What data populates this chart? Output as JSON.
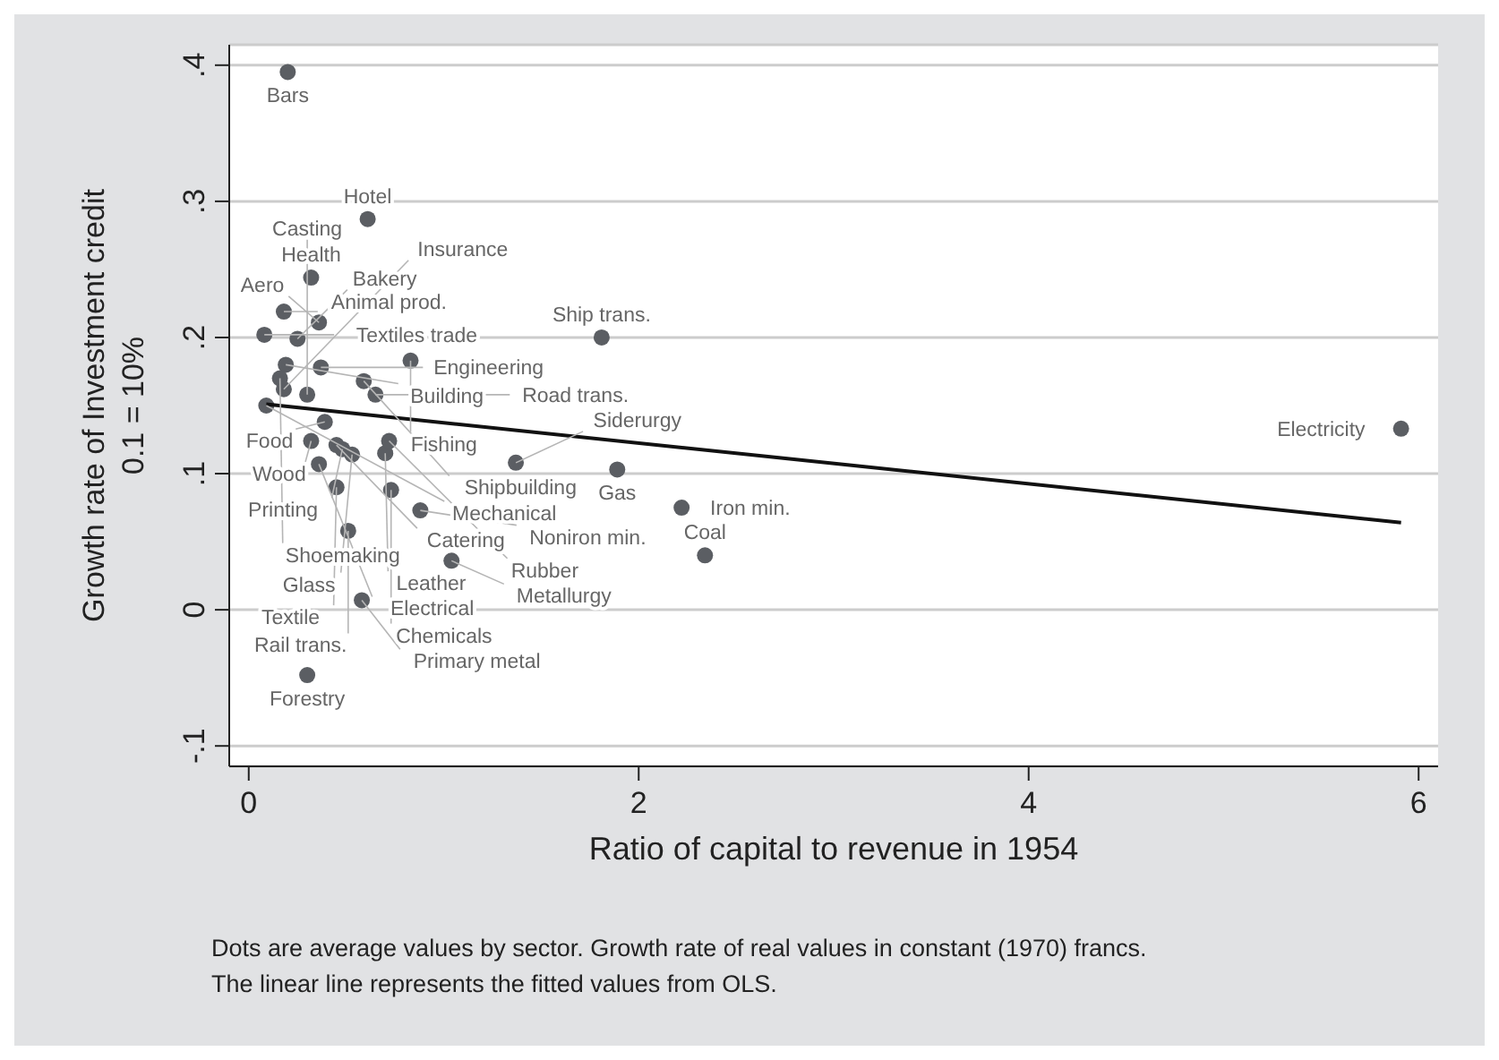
{
  "chart_data": {
    "type": "scatter",
    "xlabel": "Ratio of capital to revenue in 1954",
    "ylabel": "Growth rate of Investment credit\n0.1 = 10%",
    "xlim": [
      -0.1,
      6.1
    ],
    "xticks": [
      0,
      2,
      4,
      6
    ],
    "ylim": [
      -0.115,
      0.415
    ],
    "yticks": [
      {
        "value": -0.1,
        "label": "-.1"
      },
      {
        "value": 0,
        "label": "0"
      },
      {
        "value": 0.1,
        "label": ".1"
      },
      {
        "value": 0.2,
        "label": ".2"
      },
      {
        "value": 0.3,
        "label": ".3"
      },
      {
        "value": 0.4,
        "label": ".4"
      }
    ],
    "grid": "y",
    "legend": false,
    "series": [
      {
        "type": "scatter",
        "color": "#5b5e63",
        "marker": "circle",
        "x": [
          0.2,
          0.61,
          0.32,
          0.08,
          0.18,
          0.36,
          0.25,
          0.19,
          0.37,
          0.83,
          0.59,
          0.16,
          0.65,
          0.18,
          0.3,
          0.09,
          0.39,
          0.32,
          0.45,
          0.48,
          0.53,
          0.7,
          0.72,
          0.36,
          0.45,
          0.73,
          0.88,
          0.51,
          1.04,
          0.58,
          0.3,
          1.81,
          1.37,
          1.89,
          2.22,
          2.34,
          5.91
        ],
        "values": [
          0.395,
          0.287,
          0.244,
          0.202,
          0.219,
          0.211,
          0.199,
          0.18,
          0.178,
          0.183,
          0.168,
          0.17,
          0.158,
          0.162,
          0.158,
          0.15,
          0.138,
          0.124,
          0.121,
          0.118,
          0.114,
          0.115,
          0.124,
          0.107,
          0.09,
          0.088,
          0.073,
          0.058,
          0.036,
          0.007,
          -0.048,
          0.2,
          0.108,
          0.103,
          0.075,
          0.04,
          0.133
        ]
      },
      {
        "type": "line",
        "color": "#111111",
        "marker": "none",
        "line_style": "solid",
        "x": [
          0.09,
          5.91
        ],
        "values": [
          0.151,
          0.064
        ]
      }
    ],
    "annotations": [
      {
        "text": "Bars",
        "x": 0.2,
        "y": 0.395
      },
      {
        "text": "Hotel",
        "x": 0.61,
        "y": 0.287
      },
      {
        "text": "Health",
        "x": 0.32,
        "y": 0.244
      },
      {
        "text": "Textiles trade",
        "x": 0.08,
        "y": 0.202
      },
      {
        "text": "Animal prod.",
        "x": 0.18,
        "y": 0.219
      },
      {
        "text": "Aero",
        "x": 0.36,
        "y": 0.211
      },
      {
        "text": "Bakery",
        "x": 0.25,
        "y": 0.199
      },
      {
        "text": "Building",
        "x": 0.19,
        "y": 0.18
      },
      {
        "text": "Engineering",
        "x": 0.37,
        "y": 0.178
      },
      {
        "text": "Fishing",
        "x": 0.83,
        "y": 0.183
      },
      {
        "text": "Shipbuilding",
        "x": 0.59,
        "y": 0.168
      },
      {
        "text": "Shoemaking",
        "x": 0.16,
        "y": 0.17
      },
      {
        "text": "Road trans.",
        "x": 0.65,
        "y": 0.158
      },
      {
        "text": "Insurance",
        "x": 0.18,
        "y": 0.162
      },
      {
        "text": "Casting",
        "x": 0.3,
        "y": 0.158
      },
      {
        "text": "Mechanical",
        "x": 0.09,
        "y": 0.15
      },
      {
        "text": "Food",
        "x": 0.39,
        "y": 0.138
      },
      {
        "text": "Wood",
        "x": 0.32,
        "y": 0.124
      },
      {
        "text": "Catering",
        "x": 0.45,
        "y": 0.121
      },
      {
        "text": "Printing",
        "x": 0.48,
        "y": 0.118
      },
      {
        "text": "Glass",
        "x": 0.53,
        "y": 0.114
      },
      {
        "text": "Leather",
        "x": 0.7,
        "y": 0.115
      },
      {
        "text": "Rubber",
        "x": 0.72,
        "y": 0.124
      },
      {
        "text": "Electrical",
        "x": 0.36,
        "y": 0.107
      },
      {
        "text": "Textile",
        "x": 0.45,
        "y": 0.09
      },
      {
        "text": "Chemicals",
        "x": 0.73,
        "y": 0.088
      },
      {
        "text": "Noniron min.",
        "x": 0.88,
        "y": 0.073
      },
      {
        "text": "Rail trans.",
        "x": 0.51,
        "y": 0.058
      },
      {
        "text": "Metallurgy",
        "x": 1.04,
        "y": 0.036
      },
      {
        "text": "Primary metal",
        "x": 0.58,
        "y": 0.007
      },
      {
        "text": "Forestry",
        "x": 0.3,
        "y": -0.048
      },
      {
        "text": "Ship trans.",
        "x": 1.81,
        "y": 0.2
      },
      {
        "text": "Siderurgy",
        "x": 1.37,
        "y": 0.108
      },
      {
        "text": "Gas",
        "x": 1.89,
        "y": 0.103
      },
      {
        "text": "Iron min.",
        "x": 2.22,
        "y": 0.075
      },
      {
        "text": "Coal",
        "x": 2.34,
        "y": 0.04
      },
      {
        "text": "Electricity",
        "x": 5.91,
        "y": 0.133
      },
      "Dots are average values by sector. Growth rate of real values in constant (1970) francs.",
      "The linear line represents the fitted values from OLS."
    ]
  }
}
